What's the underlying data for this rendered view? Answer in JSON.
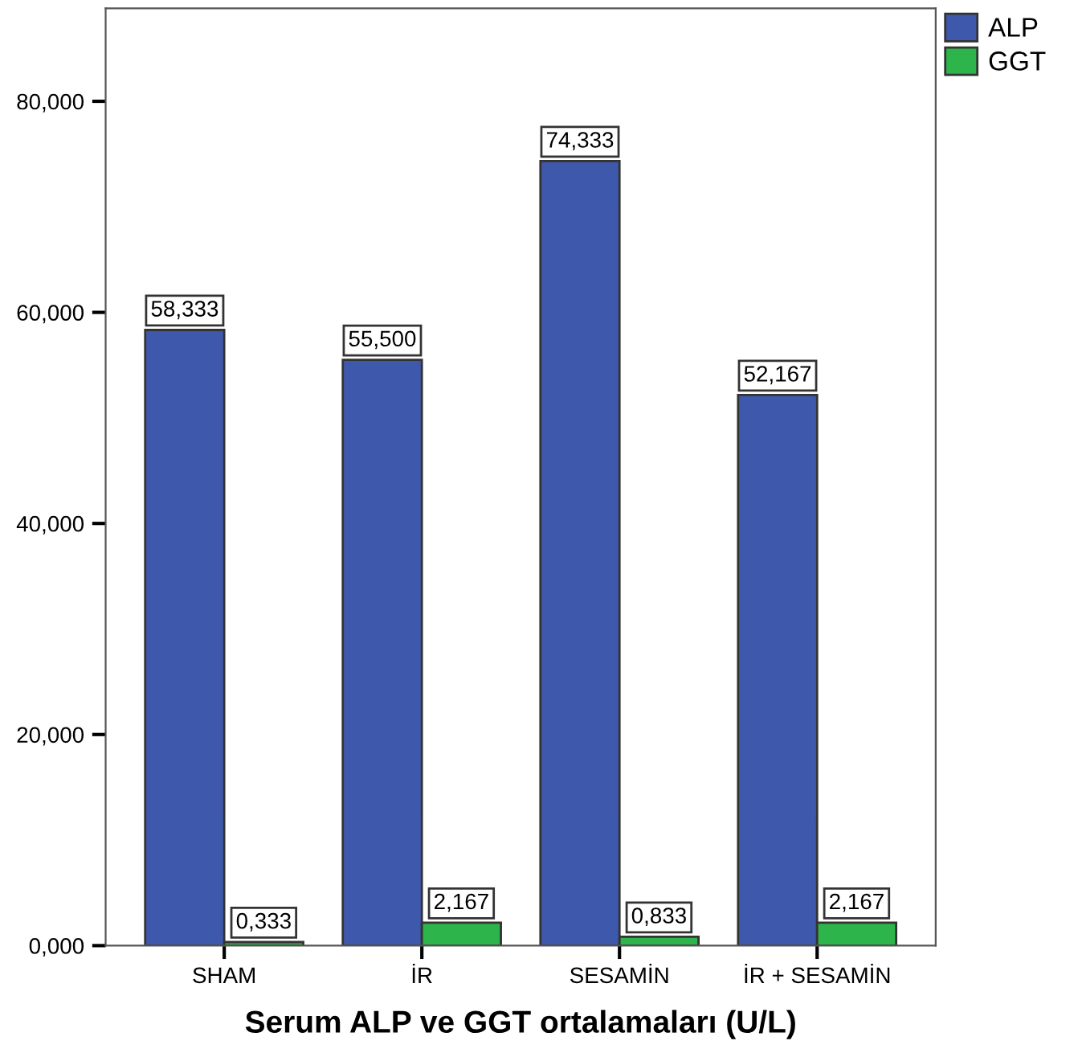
{
  "chart_data": {
    "type": "bar",
    "xlabel": "Serum ALP ve GGT ortalamaları (U/L)",
    "categories": [
      "SHAM",
      "İR",
      "SESAMİN",
      "İR + SESAMİN"
    ],
    "series": [
      {
        "name": "ALP",
        "color": "#3e58ac",
        "values": [
          58.333,
          55.5,
          74.333,
          52.167
        ],
        "value_labels": [
          "58,333",
          "55,500",
          "74,333",
          "52,167"
        ]
      },
      {
        "name": "GGT",
        "color": "#2db44a",
        "values": [
          0.333,
          2.167,
          0.833,
          2.167
        ],
        "value_labels": [
          "0,333",
          "2,167",
          "0,833",
          "2,167"
        ]
      }
    ],
    "ylim": [
      0,
      88.8
    ],
    "yticks": [
      {
        "value": 0,
        "label": "0,000"
      },
      {
        "value": 20,
        "label": "20,000"
      },
      {
        "value": 40,
        "label": "40,000"
      },
      {
        "value": 60,
        "label": "60,000"
      },
      {
        "value": 80,
        "label": "80,000"
      }
    ],
    "grid": false,
    "legend": "top right"
  }
}
